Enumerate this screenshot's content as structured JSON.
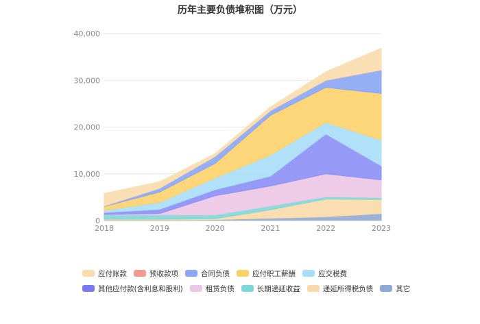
{
  "chart_data": {
    "type": "area",
    "stacked": true,
    "title": "历年主要负债堆积图（万元）",
    "x": [
      "2018",
      "2019",
      "2020",
      "2021",
      "2022",
      "2023"
    ],
    "y_ticks": [
      "0",
      "10,000",
      "20,000",
      "30,000",
      "40,000"
    ],
    "ylim": [
      0,
      40000
    ],
    "legend_position": "bottom",
    "grid": true,
    "series": [
      {
        "name": "其它",
        "color": "#8fa9d6",
        "values": [
          100,
          100,
          200,
          500,
          800,
          1500
        ]
      },
      {
        "name": "递延所得税负债",
        "color": "#f9d9a8",
        "values": [
          200,
          200,
          200,
          1800,
          3800,
          3000
        ]
      },
      {
        "name": "长期递延收益",
        "color": "#7fd6d6",
        "values": [
          900,
          900,
          800,
          800,
          500,
          400
        ]
      },
      {
        "name": "租赁负债",
        "color": "#ecc6e6",
        "values": [
          100,
          300,
          4100,
          4300,
          4900,
          3800
        ]
      },
      {
        "name": "其他应付款(含利息和股利)",
        "color": "#8b8ef5",
        "values": [
          400,
          900,
          1300,
          2100,
          8500,
          3000
        ]
      },
      {
        "name": "应交税费",
        "color": "#a8def7",
        "values": [
          500,
          1500,
          2500,
          4500,
          2500,
          5500
        ]
      },
      {
        "name": "应付职工薪酬",
        "color": "#fcd169",
        "values": [
          800,
          2200,
          3100,
          8500,
          7500,
          10000
        ]
      },
      {
        "name": "合同负债",
        "color": "#8aa6f5",
        "values": [
          100,
          800,
          1500,
          1000,
          1500,
          5000
        ]
      },
      {
        "name": "预收款项",
        "color": "#f59a8f",
        "values": [
          0,
          0,
          0,
          0,
          0,
          0
        ]
      },
      {
        "name": "应付账款",
        "color": "#fbdcac",
        "values": [
          2700,
          1400,
          600,
          800,
          1800,
          4700
        ]
      }
    ]
  },
  "legend": {
    "items": [
      {
        "label": "应付账款",
        "color": "#fbdcac"
      },
      {
        "label": "预收款项",
        "color": "#f59a8f"
      },
      {
        "label": "合同负债",
        "color": "#8aa6f5"
      },
      {
        "label": "应付职工薪酬",
        "color": "#fcd169"
      },
      {
        "label": "应交税费",
        "color": "#a8def7"
      },
      {
        "label": "其他应付款(含利息和股利)",
        "color": "#7b79ef"
      },
      {
        "label": "租赁负债",
        "color": "#ecc6e6"
      },
      {
        "label": "长期递延收益",
        "color": "#7fd6d6"
      },
      {
        "label": "递延所得税负债",
        "color": "#f9d9a8"
      },
      {
        "label": "其它",
        "color": "#8fa9d6"
      }
    ]
  }
}
